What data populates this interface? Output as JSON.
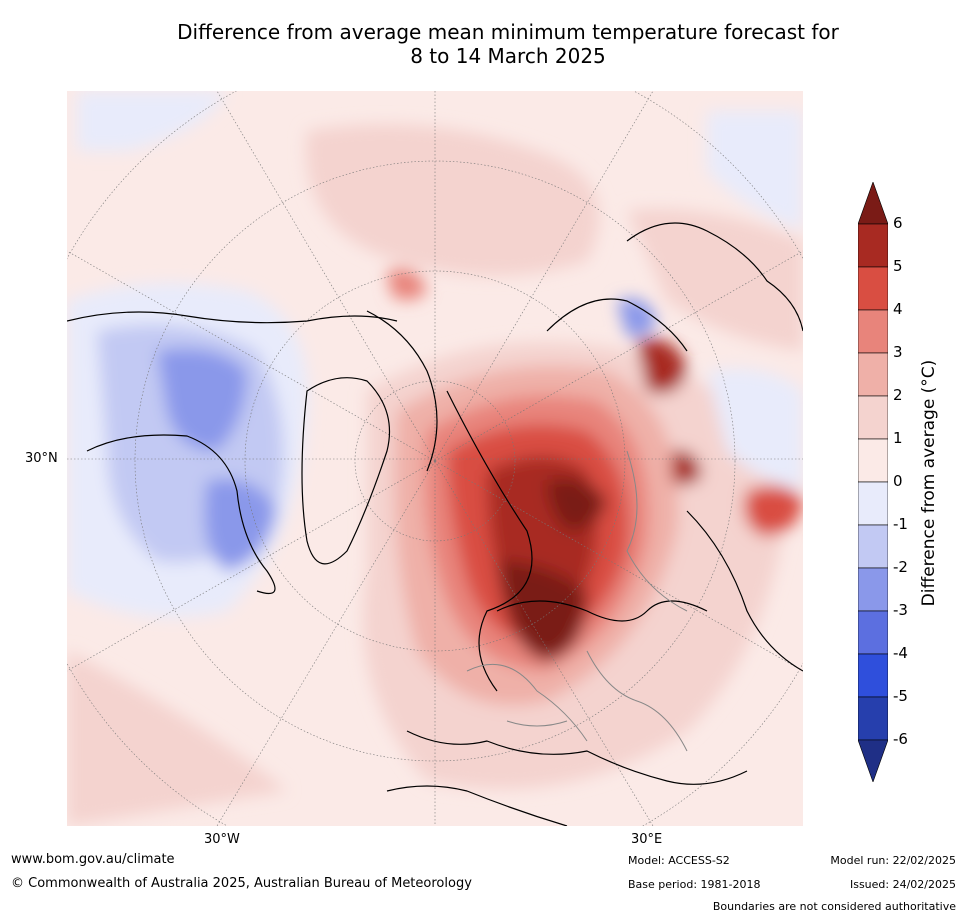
{
  "title": {
    "line1": "Difference from average mean minimum temperature forecast for",
    "line2": "8 to 14 March 2025"
  },
  "axis_labels": {
    "lat_30n": "30°N",
    "lon_30w": "30°W",
    "lon_30e": "30°E"
  },
  "colorbar": {
    "title": "Difference from average (°C)",
    "ticks": [
      "6",
      "5",
      "4",
      "3",
      "2",
      "1",
      "0",
      "-1",
      "-2",
      "-3",
      "-4",
      "-5",
      "-6"
    ],
    "colors": {
      "over": "#7a1b16",
      "5_6": "#a82a22",
      "4_5": "#d94e42",
      "3_4": "#e8847b",
      "2_3": "#efb0a8",
      "1_2": "#f4d3cf",
      "0_1": "#fbeae7",
      "m1_0": "#e8ebfb",
      "m2_m1": "#c2c9f3",
      "m3_m2": "#8a98ea",
      "m4_m3": "#5c6fe0",
      "m5_m4": "#2f4fdc",
      "m6_m5": "#263fad",
      "under": "#1f2f86"
    }
  },
  "footer": {
    "website": "www.bom.gov.au/climate",
    "copyright": "© Commonwealth of Australia 2025, Australian Bureau of Meteorology",
    "model": "Model: ACCESS-S2",
    "base_period": "Base period: 1981-2018",
    "model_run": "Model run: 22/02/2025",
    "issued": "Issued: 24/02/2025",
    "disclaimer": "Boundaries are not considered authoritative"
  }
}
